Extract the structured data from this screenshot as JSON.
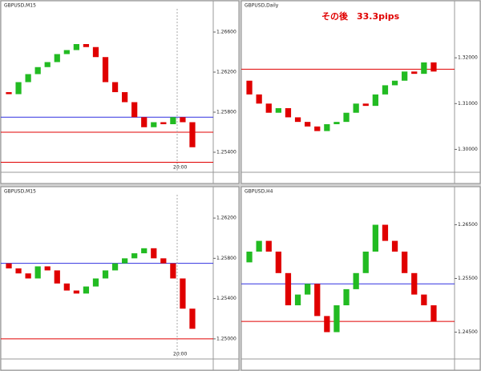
{
  "chart_data": [
    {
      "type": "candlestick",
      "title": "GBPUSD,M15",
      "annotation": "20:00",
      "open": [
        1.26,
        1.2598,
        1.261,
        1.2618,
        1.2625,
        1.263,
        1.2638,
        1.2642,
        1.2648,
        1.2645,
        1.2635,
        1.261,
        1.26,
        1.259,
        1.2575,
        1.2565,
        1.257,
        1.2568,
        1.2575,
        1.257
      ],
      "close": [
        1.2598,
        1.261,
        1.2618,
        1.2625,
        1.263,
        1.2638,
        1.2642,
        1.2648,
        1.2645,
        1.2635,
        1.261,
        1.26,
        1.259,
        1.2575,
        1.2565,
        1.257,
        1.2568,
        1.2575,
        1.257,
        1.2545
      ],
      "ylim": [
        1.252,
        1.268
      ],
      "yticks": [
        {
          "value": 1.254,
          "label": "1.25400"
        },
        {
          "value": 1.258,
          "label": "1.25800"
        },
        {
          "value": 1.262,
          "label": "1.26200"
        },
        {
          "value": 1.266,
          "label": "1.26600"
        }
      ],
      "levels": [
        {
          "value": 1.2575,
          "color": "#3030e0"
        },
        {
          "value": 1.256,
          "color": "#e00000"
        },
        {
          "value": 1.253,
          "color": "#e00000"
        }
      ]
    },
    {
      "type": "candlestick",
      "title": "GBPUSD,Daily",
      "annotation": "その後　33.3pips",
      "open": [
        1.315,
        1.312,
        1.31,
        1.308,
        1.309,
        1.307,
        1.306,
        1.305,
        1.304,
        1.3055,
        1.306,
        1.308,
        1.31,
        1.3095,
        1.312,
        1.314,
        1.315,
        1.317,
        1.3165,
        1.319
      ],
      "close": [
        1.312,
        1.31,
        1.308,
        1.309,
        1.307,
        1.306,
        1.305,
        1.304,
        1.3055,
        1.306,
        1.308,
        1.31,
        1.3095,
        1.312,
        1.314,
        1.315,
        1.317,
        1.3165,
        1.319,
        1.317
      ],
      "ylim": [
        1.295,
        1.33
      ],
      "yticks": [
        {
          "value": 1.3,
          "label": "1.30000"
        },
        {
          "value": 1.31,
          "label": "1.31000"
        },
        {
          "value": 1.32,
          "label": "1.32000"
        }
      ],
      "levels": [
        {
          "value": 1.3175,
          "color": "#e00000"
        }
      ]
    },
    {
      "type": "candlestick",
      "title": "GBPUSD,M15",
      "annotation": "20:00",
      "open": [
        1.2575,
        1.257,
        1.2565,
        1.256,
        1.2572,
        1.2568,
        1.2555,
        1.2548,
        1.2545,
        1.2552,
        1.256,
        1.2568,
        1.2575,
        1.258,
        1.2585,
        1.259,
        1.258,
        1.2575,
        1.256,
        1.253
      ],
      "close": [
        1.257,
        1.2565,
        1.256,
        1.2572,
        1.2568,
        1.2555,
        1.2548,
        1.2545,
        1.2552,
        1.256,
        1.2568,
        1.2575,
        1.258,
        1.2585,
        1.259,
        1.258,
        1.2575,
        1.256,
        1.253,
        1.251
      ],
      "ylim": [
        1.248,
        1.264
      ],
      "yticks": [
        {
          "value": 1.25,
          "label": "1.25000"
        },
        {
          "value": 1.254,
          "label": "1.25400"
        },
        {
          "value": 1.258,
          "label": "1.25800"
        },
        {
          "value": 1.262,
          "label": "1.26200"
        }
      ],
      "levels": [
        {
          "value": 1.2575,
          "color": "#3030e0"
        },
        {
          "value": 1.25,
          "color": "#e00000"
        }
      ]
    },
    {
      "type": "candlestick",
      "title": "GBPUSD,H4",
      "open": [
        1.258,
        1.26,
        1.262,
        1.26,
        1.256,
        1.25,
        1.252,
        1.254,
        1.248,
        1.245,
        1.25,
        1.253,
        1.256,
        1.26,
        1.265,
        1.262,
        1.26,
        1.256,
        1.252,
        1.25
      ],
      "close": [
        1.26,
        1.262,
        1.26,
        1.256,
        1.25,
        1.252,
        1.254,
        1.248,
        1.245,
        1.25,
        1.253,
        1.256,
        1.26,
        1.265,
        1.262,
        1.26,
        1.256,
        1.252,
        1.25,
        1.247
      ],
      "ylim": [
        1.24,
        1.27
      ],
      "yticks": [
        {
          "value": 1.245,
          "label": "1.24500"
        },
        {
          "value": 1.255,
          "label": "1.25500"
        },
        {
          "value": 1.265,
          "label": "1.26500"
        }
      ],
      "levels": [
        {
          "value": 1.247,
          "color": "#e00000"
        },
        {
          "value": 1.254,
          "color": "#3030e0"
        }
      ]
    }
  ]
}
